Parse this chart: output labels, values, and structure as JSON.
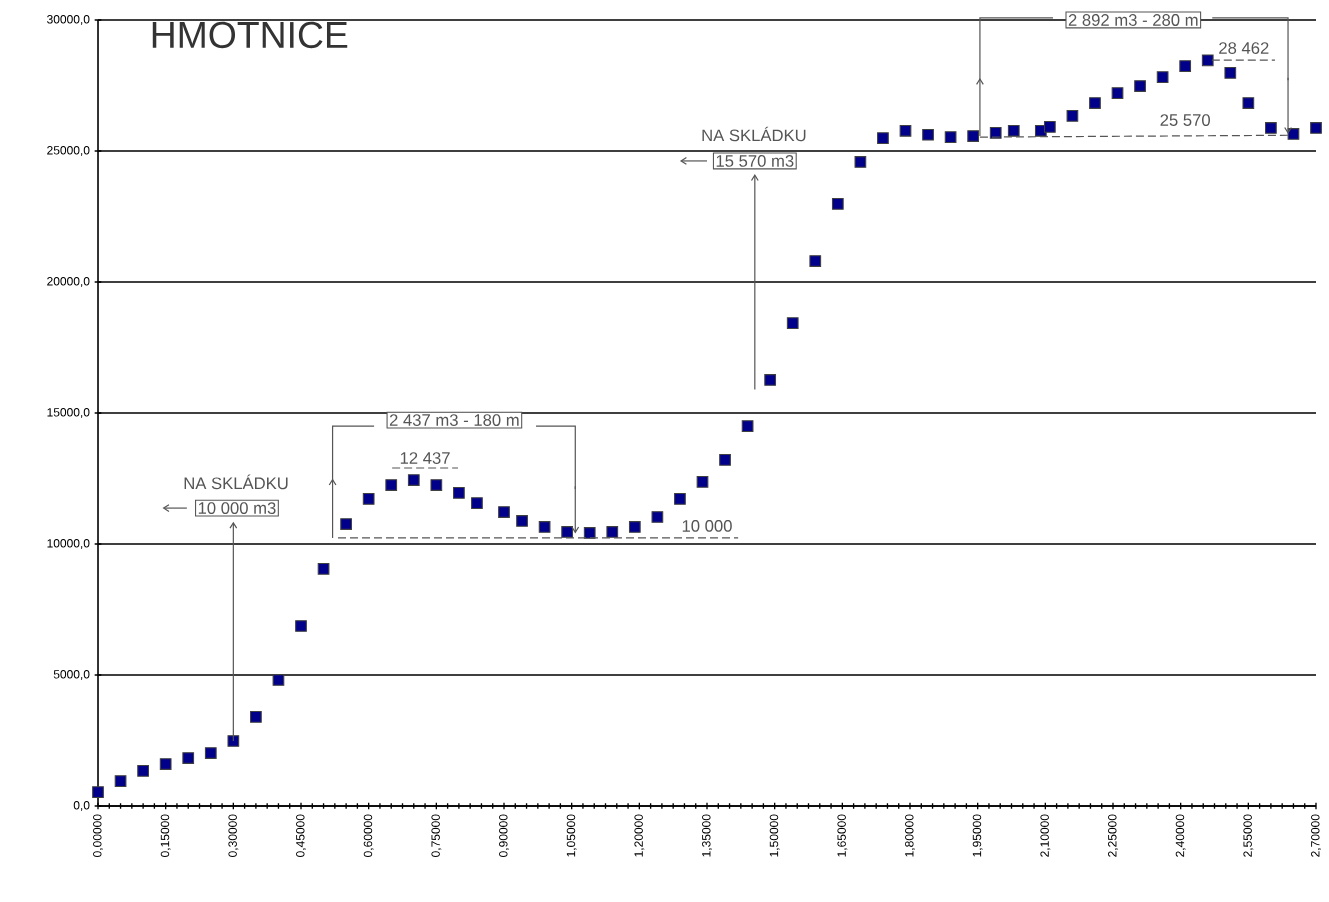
{
  "chart_data": {
    "type": "scatter",
    "title": "HMOTNICE",
    "x": [
      0,
      0.05,
      0.1,
      0.15,
      0.2,
      0.25,
      0.3,
      0.35,
      0.4,
      0.45,
      0.5,
      0.55,
      0.6,
      0.65,
      0.7,
      0.75,
      0.8,
      0.84,
      0.9,
      0.94,
      0.99,
      1.04,
      1.09,
      1.14,
      1.19,
      1.24,
      1.29,
      1.34,
      1.39,
      1.44,
      1.49,
      1.54,
      1.59,
      1.64,
      1.69,
      1.74,
      1.79,
      1.84,
      1.89,
      1.94,
      1.99,
      2.03,
      2.09,
      2.11,
      2.16,
      2.21,
      2.26,
      2.31,
      2.36,
      2.41,
      2.46,
      2.51,
      2.55,
      2.6,
      2.65,
      2.7
    ],
    "series": [
      {
        "color": "#00008b",
        "values": [
          530,
          950,
          1340,
          1600,
          1830,
          2020,
          2480,
          3400,
          4810,
          6870,
          9050,
          10760,
          11720,
          12250,
          12440,
          12250,
          11950,
          11560,
          11220,
          10880,
          10650,
          10460,
          10420,
          10460,
          10650,
          11030,
          11720,
          12370,
          13210,
          14500,
          16260,
          18430,
          20800,
          22980,
          24580,
          25490,
          25770,
          25620,
          25530,
          25570,
          25690,
          25770,
          25770,
          25920,
          26340,
          26830,
          27210,
          27480,
          27820,
          28240,
          28460,
          27980,
          26830,
          25880,
          25650,
          25880
        ]
      }
    ],
    "marker": "square",
    "grid": "y",
    "xlim": [
      0,
      2.7
    ],
    "ylim": [
      0,
      30000
    ],
    "xticks": [
      {
        "value": 0,
        "label": "0,00000"
      },
      {
        "value": 0.15,
        "label": "0,15000"
      },
      {
        "value": 0.3,
        "label": "0,30000"
      },
      {
        "value": 0.45,
        "label": "0,45000"
      },
      {
        "value": 0.6,
        "label": "0,60000"
      },
      {
        "value": 0.75,
        "label": "0,75000"
      },
      {
        "value": 0.9,
        "label": "0,90000"
      },
      {
        "value": 1.05,
        "label": "1,05000"
      },
      {
        "value": 1.2,
        "label": "1,20000"
      },
      {
        "value": 1.35,
        "label": "1,35000"
      },
      {
        "value": 1.5,
        "label": "1,50000"
      },
      {
        "value": 1.65,
        "label": "1,65000"
      },
      {
        "value": 1.8,
        "label": "1,80000"
      },
      {
        "value": 1.95,
        "label": "1,95000"
      },
      {
        "value": 2.1,
        "label": "2,10000"
      },
      {
        "value": 2.25,
        "label": "2,25000"
      },
      {
        "value": 2.4,
        "label": "2,40000"
      },
      {
        "value": 2.55,
        "label": "2,55000"
      },
      {
        "value": 2.7,
        "label": "2,70000"
      }
    ],
    "yticks": [
      {
        "value": 0,
        "label": "0,0"
      },
      {
        "value": 5000,
        "label": "5000,0"
      },
      {
        "value": 10000,
        "label": "10000,0"
      },
      {
        "value": 15000,
        "label": "15000,0"
      },
      {
        "value": 20000,
        "label": "20000,0"
      },
      {
        "value": 25000,
        "label": "25000,0"
      },
      {
        "value": 30000,
        "label": "30000,0"
      }
    ],
    "annotations": [
      "NA SKLÁDKU",
      {
        "text": "10 000 m3",
        "x": 0.3,
        "y": 2480
      },
      "NA SKLÁDKU",
      "15 570 m3",
      "2 437 m3 - 180 m",
      "12 437",
      "10 000",
      "2 892 m3 - 280 m",
      "28 462",
      "25 570"
    ]
  }
}
